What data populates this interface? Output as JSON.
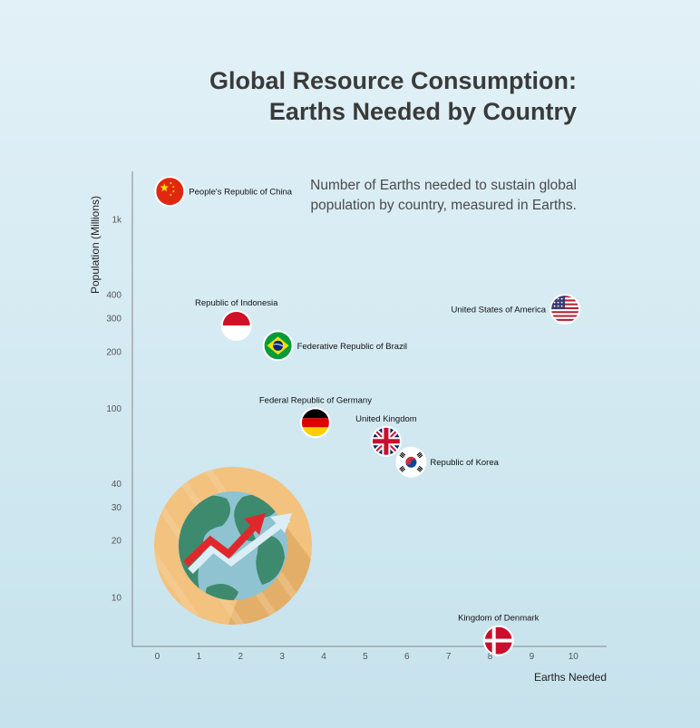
{
  "chart_data": {
    "type": "scatter",
    "title": "Global Resource Consumption: Earths Needed by Country",
    "subtitle": "Number of Earths needed to sustain global population by country, measured in Earths.",
    "xlabel": "Earths Needed",
    "ylabel": "Population (Millions)",
    "xlim": [
      -0.6,
      10.8
    ],
    "ylim": [
      5.5,
      1800
    ],
    "yscale": "log",
    "x_ticks": [
      0,
      1,
      2,
      3,
      4,
      5,
      6,
      7,
      8,
      9,
      10
    ],
    "y_ticks": [
      {
        "value": 10,
        "label": "10"
      },
      {
        "value": 20,
        "label": "20"
      },
      {
        "value": 30,
        "label": "30"
      },
      {
        "value": 40,
        "label": "40"
      },
      {
        "value": 100,
        "label": "100"
      },
      {
        "value": 200,
        "label": "200"
      },
      {
        "value": 300,
        "label": "300"
      },
      {
        "value": 400,
        "label": "400"
      },
      {
        "value": 1000,
        "label": "1k"
      }
    ],
    "grid": false,
    "points": [
      {
        "name": "People's Republic of China",
        "x": 0.3,
        "y": 1410,
        "flag": "china-flag",
        "label_pos": "right"
      },
      {
        "name": "Republic of Indonesia",
        "x": 1.9,
        "y": 275,
        "flag": "indonesia-flag",
        "label_pos": "above"
      },
      {
        "name": "Federative Republic of Brazil",
        "x": 2.9,
        "y": 215,
        "flag": "brazil-flag",
        "label_pos": "right"
      },
      {
        "name": "United States of America",
        "x": 9.8,
        "y": 335,
        "flag": "usa-flag",
        "label_pos": "left"
      },
      {
        "name": "Federal Republic of Germany",
        "x": 3.8,
        "y": 84,
        "flag": "germany-flag",
        "label_pos": "above"
      },
      {
        "name": "United Kingdom",
        "x": 5.5,
        "y": 67,
        "flag": "uk-flag",
        "label_pos": "above"
      },
      {
        "name": "Republic of Korea",
        "x": 6.1,
        "y": 52,
        "flag": "korea-flag",
        "label_pos": "right"
      },
      {
        "name": "Kingdom of Denmark",
        "x": 8.2,
        "y": 5.9,
        "flag": "denmark-flag",
        "label_pos": "above"
      }
    ],
    "colors": {
      "axis": "#888888",
      "title": "#3a3a3a",
      "globe_ring": "#f2c27e",
      "globe_ocean": "#8fc3d1",
      "globe_land": "#3d8a6e",
      "arrow_red": "#e0282c",
      "arrow_light": "#dceef5"
    }
  }
}
